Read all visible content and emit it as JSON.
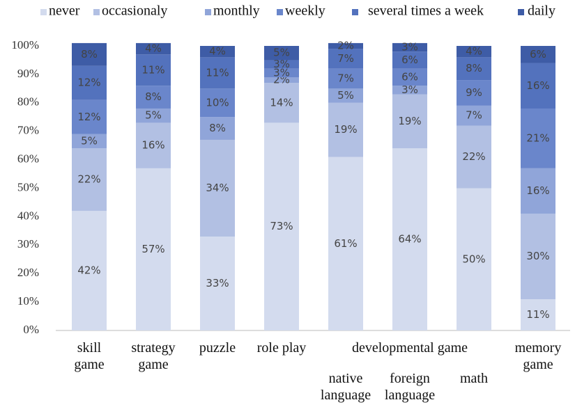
{
  "chart_data": {
    "type": "stacked_bar",
    "categories": [
      "skill\ngame",
      "strategy\ngame",
      "puzzle",
      "role play",
      "native\nlanguage",
      "foreign\nlanguage",
      "math",
      "memory\ngame"
    ],
    "group_label": "developmental game",
    "series": [
      {
        "name": "never",
        "color": "#d3dbee",
        "values": [
          42,
          57,
          33,
          73,
          61,
          64,
          50,
          11
        ],
        "value_labels": [
          "42%",
          "57%",
          "33%",
          "73%",
          "61%",
          "64%",
          "50%",
          "11%"
        ]
      },
      {
        "name": "occasionaly",
        "color": "#b2c0e3",
        "values": [
          22,
          16,
          34,
          14,
          19,
          19,
          22,
          30
        ],
        "value_labels": [
          "22%",
          "16%",
          "34%",
          "14%",
          "19%",
          "19%",
          "22%",
          "30%"
        ]
      },
      {
        "name": "monthly",
        "color": "#90a5d9",
        "values": [
          5,
          5,
          8,
          2,
          5,
          3,
          7,
          16
        ],
        "value_labels": [
          "5%",
          "5%",
          "8%",
          "2%",
          "5%",
          "3%",
          "7%",
          "16%"
        ]
      },
      {
        "name": "weekly",
        "color": "#6a86cb",
        "values": [
          12,
          8,
          10,
          3,
          7,
          6,
          9,
          21
        ],
        "value_labels": [
          "12%",
          "8%",
          "10%",
          "3%",
          "7%",
          "6%",
          "9%",
          "21%"
        ]
      },
      {
        "name": "several times a week",
        "color": "#5372bd",
        "values": [
          12,
          11,
          11,
          3,
          7,
          6,
          8,
          16
        ],
        "value_labels": [
          "12%",
          "11%",
          "11%",
          "3%",
          "7%",
          "6%",
          "8%",
          "16%"
        ]
      },
      {
        "name": "daily",
        "color": "#3e5ca6",
        "values": [
          8,
          4,
          4,
          5,
          2,
          3,
          4,
          6
        ],
        "value_labels": [
          "8%",
          "4%",
          "4%",
          "5%",
          "2%",
          "3%",
          "4%",
          "6%"
        ]
      }
    ],
    "ylim": [
      0,
      100
    ],
    "yticks": [
      {
        "value": 0,
        "label": "0%"
      },
      {
        "value": 10,
        "label": "10%"
      },
      {
        "value": 20,
        "label": "20%"
      },
      {
        "value": 30,
        "label": "30%"
      },
      {
        "value": 40,
        "label": "40%"
      },
      {
        "value": 50,
        "label": "50%"
      },
      {
        "value": 60,
        "label": "60%"
      },
      {
        "value": 70,
        "label": "70%"
      },
      {
        "value": 80,
        "label": "80%"
      },
      {
        "value": 90,
        "label": "90%"
      },
      {
        "value": 100,
        "label": "100%"
      }
    ],
    "legend": "top"
  }
}
